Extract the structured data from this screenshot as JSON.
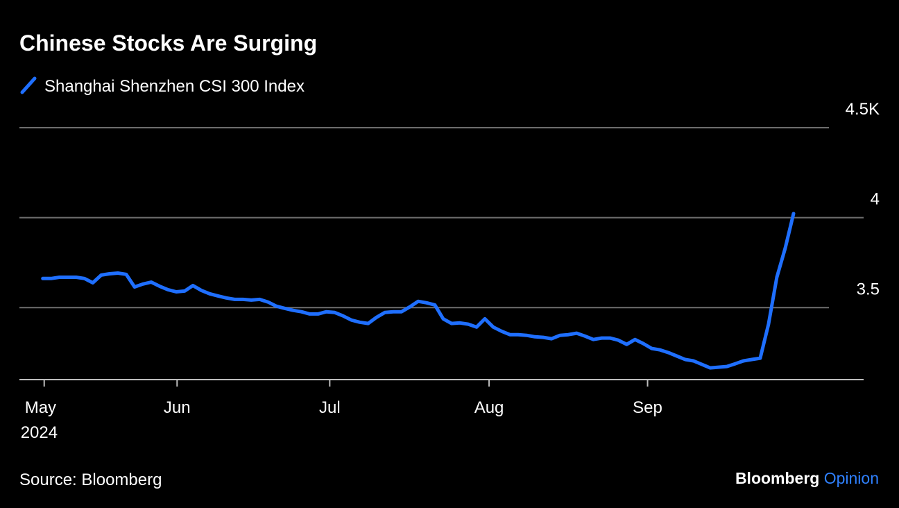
{
  "chart_data": {
    "type": "line",
    "title": "Chinese Stocks Are Surging",
    "source": "Source: Bloomberg",
    "branding": {
      "name": "Bloomberg",
      "suffix": "Opinion"
    },
    "year_label": "2024",
    "series": [
      {
        "name": "Shanghai Shenzhen CSI 300 Index",
        "color": "#1f6fff",
        "values": [
          3.662,
          3.662,
          3.669,
          3.669,
          3.669,
          3.662,
          3.638,
          3.681,
          3.688,
          3.692,
          3.685,
          3.615,
          3.631,
          3.642,
          3.619,
          3.6,
          3.588,
          3.592,
          3.623,
          3.596,
          3.577,
          3.565,
          3.554,
          3.546,
          3.546,
          3.542,
          3.546,
          3.531,
          3.508,
          3.496,
          3.485,
          3.477,
          3.465,
          3.465,
          3.477,
          3.473,
          3.454,
          3.431,
          3.419,
          3.412,
          3.446,
          3.473,
          3.477,
          3.477,
          3.504,
          3.535,
          3.527,
          3.515,
          3.438,
          3.412,
          3.415,
          3.408,
          3.392,
          3.438,
          3.392,
          3.369,
          3.35,
          3.35,
          3.346,
          3.338,
          3.335,
          3.327,
          3.346,
          3.35,
          3.358,
          3.342,
          3.323,
          3.331,
          3.331,
          3.319,
          3.296,
          3.323,
          3.3,
          3.273,
          3.265,
          3.25,
          3.231,
          3.212,
          3.204,
          3.185,
          3.165,
          3.169,
          3.173,
          3.188,
          3.204,
          3.212,
          3.219,
          3.408,
          3.669,
          3.831,
          4.023
        ]
      }
    ],
    "xlim": [
      -2.8,
      98.4
    ],
    "xticks": [
      {
        "value": 0.17,
        "label": "May"
      },
      {
        "value": 16.1,
        "label": "Jun"
      },
      {
        "value": 34.4,
        "label": "Jul"
      },
      {
        "value": 53.5,
        "label": "Aug"
      },
      {
        "value": 72.5,
        "label": "Sep"
      }
    ],
    "ylim": [
      3.1,
      4.5
    ],
    "yticks": [
      3.5,
      4.0,
      {
        "value": 4.5,
        "label": "4.5K"
      }
    ],
    "grid": true
  }
}
